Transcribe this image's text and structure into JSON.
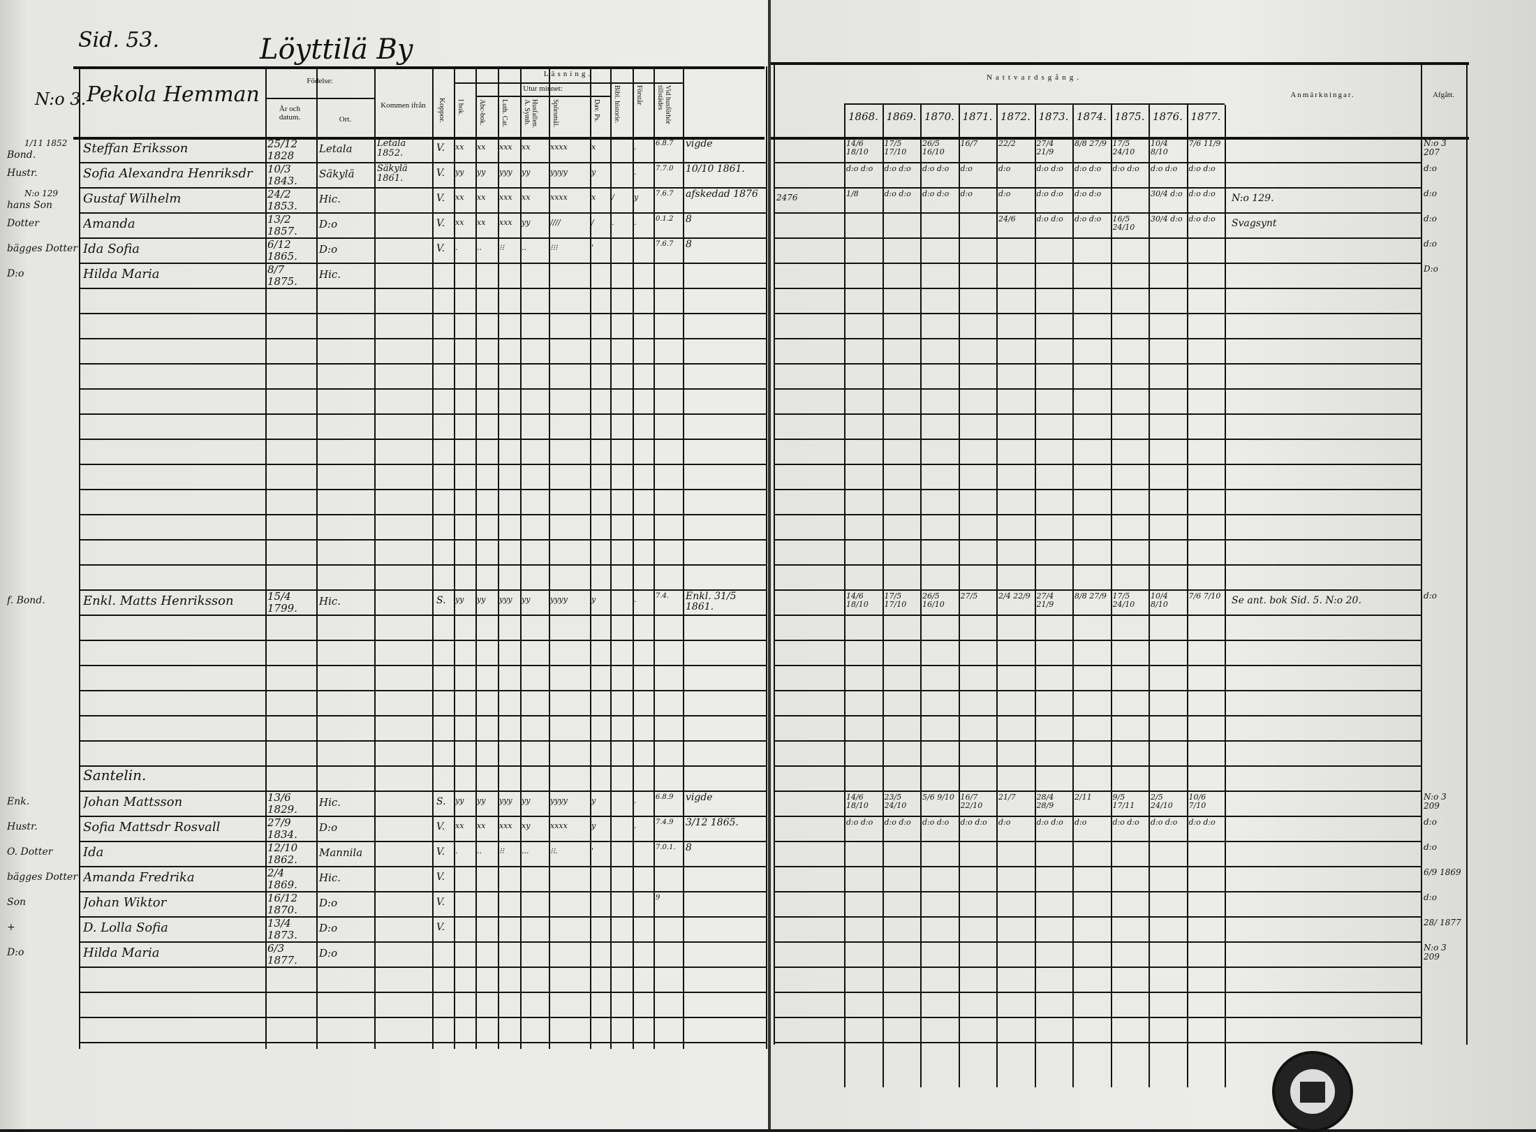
{
  "header": {
    "page_ref": "Sid. 53.",
    "village": "Löyttilä By",
    "household_no": "N:o 3.",
    "homestead": "Pekola Hemman"
  },
  "columns": {
    "fodelse": "Födelse:",
    "ar_datum": "År och datum.",
    "ort": "Ort.",
    "kommen": "Kommen ifrån",
    "koppor": "Koppor.",
    "lasning": "Läsning.",
    "utur_minnet": "Utur minnet:",
    "i_bok": "I bok.",
    "abc": "Abc-bok.",
    "luth": "Luth. Cat.",
    "husf": "Husfallen. A. Symb.",
    "spors": "Spörsmål.",
    "dav": "Dav. Ps.",
    "bibl": "Bibl. historie.",
    "forstar": "Förstår",
    "husforhor": "Vid husförhör tillstädes",
    "nattvard": "Nattvardsgång.",
    "years": [
      "1868.",
      "1869.",
      "1870.",
      "1871.",
      "1872.",
      "1873.",
      "1874.",
      "1875.",
      "1876.",
      "1877."
    ],
    "anmarkningar": "Anmärkningar.",
    "afgatt": "Afgått."
  },
  "persons": [
    {
      "row": 0,
      "pre": "1/11 1852",
      "rel": "Bond.",
      "name": "Steffan Eriksson",
      "born": "25/12 1828",
      "place": "Letala",
      "from": "Letala 1852.",
      "koppor": "V.",
      "reading": [
        "xx",
        "xx",
        "xxx",
        "xx",
        "xxxx",
        "x",
        "",
        "."
      ],
      "husforhor": "6.8.7",
      "note": "vigde",
      "extra": "",
      "communion": [
        "14/6 18/10",
        "17/5 17/10",
        "26/5 16/10",
        "16/7",
        "22/2",
        "27/4 21/9",
        "8/8 27/9",
        "17/5 24/10",
        "10/4 8/10",
        "7/6 11/9"
      ],
      "anm": "",
      "afgatt": "N:o 3 207"
    },
    {
      "row": 1,
      "pre": "",
      "rel": "Hustr.",
      "name": "Sofia Alexandra Henriksdr",
      "born": "10/3 1843.",
      "place": "Säkylä",
      "from": "Säkylä 1861.",
      "koppor": "V.",
      "reading": [
        "yy",
        "yy",
        "yyy",
        "yy",
        "yyyy",
        "y",
        "",
        "."
      ],
      "husforhor": "7.7.0",
      "note": "10/10 1861.",
      "extra": "",
      "communion": [
        "d:o d:o",
        "d:o d:o",
        "d:o d:o",
        "d:o",
        "d:o",
        "d:o d:o",
        "d:o d:o",
        "d:o d:o",
        "d:o d:o",
        "d:o d:o"
      ],
      "anm": "",
      "afgatt": "d:o"
    },
    {
      "row": 2,
      "pre": "N:o 129",
      "rel": "hans Son",
      "name": "Gustaf Wilhelm",
      "born": "24/2 1853.",
      "place": "Hic.",
      "from": "",
      "koppor": "V.",
      "reading": [
        "xx",
        "xx",
        "xxx",
        "xx",
        "xxxx",
        "x",
        "/",
        "y"
      ],
      "husforhor": "7.6.7",
      "note": "afskedad 1876",
      "extra": "2476",
      "communion": [
        "1/8",
        "d:o d:o",
        "d:o d:o",
        "d:o",
        "d:o",
        "d:o d:o",
        "d:o d:o",
        "",
        "30/4 d:o",
        "d:o d:o"
      ],
      "anm": "N:o 129.",
      "afgatt": "d:o"
    },
    {
      "row": 3,
      "pre": "",
      "rel": "Dotter",
      "name": "Amanda",
      "born": "13/2 1857.",
      "place": "D:o",
      "from": "",
      "koppor": "V.",
      "reading": [
        "xx",
        "xx",
        "xxx",
        "yy",
        "////",
        "/",
        ".",
        "."
      ],
      "husforhor": "0.1.2",
      "note": "8",
      "extra": "",
      "communion": [
        "",
        "",
        "",
        "",
        "24/6",
        "d:o d:o",
        "d:o d:o",
        "16/5 24/10",
        "30/4 d:o",
        "d:o d:o"
      ],
      "anm": "Svagsynt",
      "afgatt": "d:o"
    },
    {
      "row": 4,
      "pre": "",
      "rel": "bägges Dotter",
      "name": "Ida Sofia",
      "born": "6/12 1865.",
      "place": "D:o",
      "from": "",
      "koppor": "V.",
      "reading": [
        ".",
        "..",
        "⁝⁝",
        "..",
        "⁝⁝⁝",
        "'",
        "",
        ""
      ],
      "husforhor": "7.6.7",
      "note": "8",
      "extra": "",
      "communion": [
        "",
        "",
        "",
        "",
        "",
        "",
        "",
        "",
        "",
        ""
      ],
      "anm": "",
      "afgatt": "d:o"
    },
    {
      "row": 5,
      "pre": "",
      "rel": "D:o",
      "name": "Hilda Maria",
      "born": "8/7 1875.",
      "place": "Hic.",
      "from": "",
      "koppor": "",
      "reading": [
        "",
        "",
        "",
        "",
        "",
        "",
        "",
        ""
      ],
      "husforhor": "",
      "note": "",
      "extra": "",
      "communion": [
        "",
        "",
        "",
        "",
        "",
        "",
        "",
        "",
        "",
        ""
      ],
      "anm": "",
      "afgatt": "D:o"
    },
    {
      "row": 18,
      "pre": "",
      "rel": "f. Bond.",
      "name": "Enkl. Matts Henriksson",
      "born": "15/4 1799.",
      "place": "Hic.",
      "from": "",
      "koppor": "S.",
      "reading": [
        "yy",
        "yy",
        "yyy",
        "yy",
        "yyyy",
        "y",
        "",
        "."
      ],
      "husforhor": "7.4.",
      "note": "Enkl. 31/5 1861.",
      "extra": "",
      "communion": [
        "14/6 18/10",
        "17/5 17/10",
        "26/5 16/10",
        "27/5",
        "2/4 22/9",
        "27/4 21/9",
        "8/8 27/9",
        "17/5 24/10",
        "10/4 8/10",
        "7/6 7/10"
      ],
      "anm": "Se ant. bok Sid. 5. N:o 20.",
      "afgatt": "d:o"
    },
    {
      "row": 25,
      "pre": "",
      "rel": "",
      "name": "Santelin.",
      "born": "",
      "place": "",
      "from": "",
      "koppor": "",
      "reading": [
        "",
        "",
        "",
        "",
        "",
        "",
        "",
        ""
      ],
      "husforhor": "",
      "note": "",
      "extra": "",
      "communion": [
        "",
        "",
        "",
        "",
        "",
        "",
        "",
        "",
        "",
        ""
      ],
      "anm": "",
      "afgatt": ""
    },
    {
      "row": 26,
      "pre": "",
      "rel": "Enk.",
      "name": "Johan Mattsson",
      "born": "13/6 1829.",
      "place": "Hic.",
      "from": "",
      "koppor": "S.",
      "reading": [
        "yy",
        "yy",
        "yyy",
        "yy",
        "yyyy",
        "y",
        "",
        "."
      ],
      "husforhor": "6.8.9",
      "note": "vigde",
      "extra": "",
      "communion": [
        "14/6 18/10",
        "23/5 24/10",
        "5/6 9/10",
        "16/7 22/10",
        "21/7",
        "28/4 28/9",
        "2/11",
        "9/5 17/11",
        "2/5 24/10",
        "10/6 7/10"
      ],
      "anm": "",
      "afgatt": "N:o 3 209"
    },
    {
      "row": 27,
      "pre": "",
      "rel": "Hustr.",
      "name": "Sofia Mattsdr Rosvall",
      "born": "27/9 1834.",
      "place": "D:o",
      "from": "",
      "koppor": "V.",
      "reading": [
        "xx",
        "xx",
        "xxx",
        "xy",
        "xxxx",
        "y",
        "",
        "."
      ],
      "husforhor": "7.4.9",
      "note": "3/12 1865.",
      "extra": "",
      "communion": [
        "d:o d:o",
        "d:o d:o",
        "d:o d:o",
        "d:o d:o",
        "d:o",
        "d:o d:o",
        "d:o",
        "d:o d:o",
        "d:o d:o",
        "d:o d:o"
      ],
      "anm": "",
      "afgatt": "d:o"
    },
    {
      "row": 28,
      "pre": "",
      "rel": "O. Dotter",
      "name": "Ida",
      "born": "12/10 1862.",
      "place": "Mannila",
      "from": "",
      "koppor": "V.",
      "reading": [
        ".",
        "..",
        "⁝⁝",
        "...",
        "⁝⁝.",
        "'",
        "",
        ""
      ],
      "husforhor": "7.0.1.",
      "note": "8",
      "extra": "",
      "communion": [
        "",
        "",
        "",
        "",
        "",
        "",
        "",
        "",
        "",
        ""
      ],
      "anm": "",
      "afgatt": "d:o"
    },
    {
      "row": 29,
      "pre": "",
      "rel": "bägges Dotter",
      "name": "Amanda Fredrika",
      "born": "2/4 1869.",
      "place": "Hic.",
      "from": "",
      "koppor": "V.",
      "reading": [
        "",
        "",
        "",
        "",
        "",
        "",
        "",
        ""
      ],
      "husforhor": "",
      "note": "",
      "extra": "",
      "communion": [
        "",
        "",
        "",
        "",
        "",
        "",
        "",
        "",
        "",
        ""
      ],
      "anm": "",
      "afgatt": "6/9 1869"
    },
    {
      "row": 30,
      "pre": "",
      "rel": "Son",
      "name": "Johan Wiktor",
      "born": "16/12 1870.",
      "place": "D:o",
      "from": "",
      "koppor": "V.",
      "reading": [
        "",
        "",
        "",
        "",
        "",
        "",
        "",
        ""
      ],
      "husforhor": "9",
      "note": "",
      "extra": "",
      "communion": [
        "",
        "",
        "",
        "",
        "",
        "",
        "",
        "",
        "",
        ""
      ],
      "anm": "",
      "afgatt": "d:o"
    },
    {
      "row": 31,
      "pre": "",
      "rel": "+",
      "name": "D. Lolla Sofia",
      "born": "13/4 1873.",
      "place": "D:o",
      "from": "",
      "koppor": "V.",
      "reading": [
        "",
        "",
        "",
        "",
        "",
        "",
        "",
        ""
      ],
      "husforhor": "",
      "note": "",
      "extra": "",
      "communion": [
        "",
        "",
        "",
        "",
        "",
        "",
        "",
        "",
        "",
        ""
      ],
      "anm": "",
      "afgatt": "28/ 1877"
    },
    {
      "row": 32,
      "pre": "",
      "rel": "D:o",
      "name": "Hilda Maria",
      "born": "6/3 1877.",
      "place": "D:o",
      "from": "",
      "koppor": "",
      "reading": [
        "",
        "",
        "",
        "",
        "",
        "",
        "",
        ""
      ],
      "husforhor": "",
      "note": "",
      "extra": "",
      "communion": [
        "",
        "",
        "",
        "",
        "",
        "",
        "",
        "",
        "",
        ""
      ],
      "anm": "",
      "afgatt": "N:o 3 209"
    }
  ]
}
